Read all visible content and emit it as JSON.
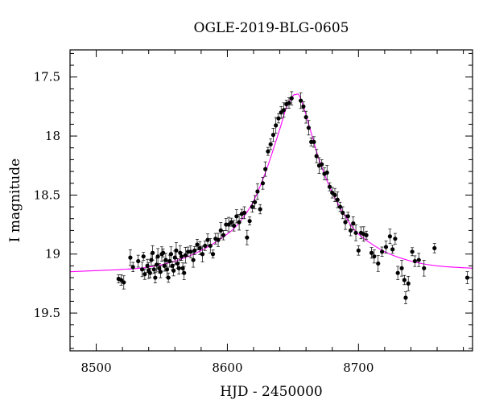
{
  "chart_data": {
    "type": "scatter",
    "title": "OGLE-2019-BLG-0605",
    "xlabel": "HJD - 2450000",
    "ylabel": "I magnitude",
    "xlim": [
      8480,
      8787
    ],
    "ylim": [
      19.82,
      17.27
    ],
    "y_inverted": true,
    "x_ticks": [
      8500,
      8600,
      8700
    ],
    "y_ticks": [
      17.5,
      18,
      18.5,
      19,
      19.5
    ],
    "x_tick_labels": [
      "8500",
      "8600",
      "8700"
    ],
    "y_tick_labels": [
      "17.5",
      "18",
      "18.5",
      "19",
      "19.5"
    ],
    "grid": false,
    "legend": "none",
    "colors": {
      "points": "#000000",
      "model": "#ff00ff"
    },
    "model": {
      "name": "",
      "x": [
        8480,
        8500,
        8520,
        8540,
        8560,
        8580,
        8600,
        8610,
        8620,
        8630,
        8640,
        8645,
        8650,
        8652,
        8655,
        8660,
        8670,
        8680,
        8690,
        8700,
        8720,
        8740,
        8760,
        8787
      ],
      "y": [
        19.15,
        19.14,
        19.13,
        19.11,
        19.06,
        18.97,
        18.83,
        18.72,
        18.55,
        18.28,
        17.94,
        17.76,
        17.66,
        17.65,
        17.66,
        17.82,
        18.2,
        18.48,
        18.68,
        18.83,
        18.98,
        19.06,
        19.1,
        19.12
      ]
    },
    "series": [
      {
        "name": "",
        "x": [
          8517,
          8519,
          8521,
          8526,
          8528,
          8532,
          8535,
          8536,
          8537,
          8539,
          8540,
          8541,
          8542,
          8543,
          8544,
          8545,
          8546,
          8547,
          8548,
          8549,
          8550,
          8551,
          8552,
          8553,
          8554,
          8555,
          8556,
          8557,
          8558,
          8559,
          8560,
          8561,
          8562,
          8563,
          8564,
          8565,
          8566,
          8567,
          8568,
          8570,
          8572,
          8574,
          8575,
          8577,
          8579,
          8581,
          8583,
          8585,
          8587,
          8589,
          8591,
          8593,
          8595,
          8597,
          8599,
          8601,
          8603,
          8605,
          8607,
          8609,
          8611,
          8613,
          8615,
          8617,
          8619,
          8621,
          8623,
          8625,
          8627,
          8629,
          8631,
          8633,
          8635,
          8637,
          8639,
          8641,
          8643,
          8645,
          8647,
          8649,
          8656,
          8658,
          8660,
          8662,
          8664,
          8666,
          8668,
          8670,
          8672,
          8674,
          8676,
          8678,
          8680,
          8682,
          8684,
          8686,
          8688,
          8690,
          8692,
          8694,
          8696,
          8698,
          8700,
          8702,
          8704,
          8706,
          8710,
          8712,
          8715,
          8718,
          8721,
          8724,
          8726,
          8728,
          8730,
          8733,
          8735,
          8736,
          8738,
          8741,
          8743,
          8746,
          8750,
          8758,
          8783
        ],
        "y": [
          19.21,
          19.22,
          19.24,
          19.03,
          19.11,
          19.06,
          19.13,
          19.02,
          19.17,
          19.1,
          19.14,
          19.16,
          19.05,
          18.99,
          19.13,
          19.2,
          19.09,
          19.02,
          19.12,
          19.15,
          19.0,
          18.99,
          19.1,
          19.05,
          19.13,
          19.2,
          19.06,
          19.0,
          19.1,
          19.14,
          19.03,
          18.97,
          19.08,
          19.12,
          18.99,
          19.02,
          19.12,
          19.16,
          19.01,
          18.98,
          18.98,
          19.05,
          18.97,
          18.92,
          18.95,
          19.0,
          18.93,
          18.88,
          18.93,
          19.0,
          18.87,
          18.88,
          18.8,
          18.84,
          18.75,
          18.75,
          18.73,
          18.76,
          18.68,
          18.73,
          18.66,
          18.65,
          18.86,
          18.72,
          18.6,
          18.56,
          18.47,
          18.62,
          18.4,
          18.28,
          18.13,
          18.07,
          17.99,
          17.91,
          17.85,
          17.8,
          17.78,
          17.73,
          17.72,
          17.68,
          17.7,
          17.75,
          17.84,
          17.93,
          18.05,
          18.05,
          18.17,
          18.25,
          18.24,
          18.32,
          18.31,
          18.43,
          18.48,
          18.5,
          18.54,
          18.6,
          18.65,
          18.73,
          18.68,
          18.8,
          18.74,
          18.82,
          18.97,
          18.82,
          18.83,
          18.84,
          18.99,
          19.02,
          19.08,
          18.98,
          18.94,
          18.85,
          18.96,
          18.87,
          19.16,
          19.12,
          19.22,
          19.37,
          19.25,
          18.98,
          19.06,
          19.05,
          19.12,
          18.95,
          19.2
        ]
      }
    ]
  }
}
